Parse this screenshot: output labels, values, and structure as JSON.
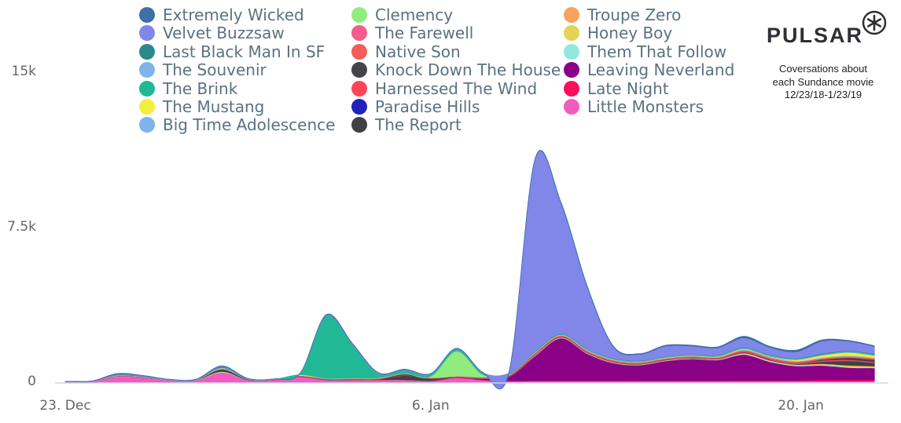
{
  "chart_data": {
    "type": "area",
    "stacked": true,
    "title": "",
    "xlabel": "",
    "ylabel": "",
    "ylim": [
      0,
      15000
    ],
    "y_ticks": [
      {
        "value": 0,
        "label": "0"
      },
      {
        "value": 7500,
        "label": "7.5k"
      },
      {
        "value": 15000,
        "label": "15k"
      }
    ],
    "x_ticks": [
      {
        "index": 0,
        "label": "23. Dec"
      },
      {
        "index": 14,
        "label": "6. Jan"
      },
      {
        "index": 28,
        "label": "20. Jan"
      }
    ],
    "x": [
      "Dec 23",
      "Dec 24",
      "Dec 25",
      "Dec 26",
      "Dec 27",
      "Dec 28",
      "Dec 29",
      "Dec 30",
      "Dec 31",
      "Jan 1",
      "Jan 2",
      "Jan 3",
      "Jan 4",
      "Jan 5",
      "Jan 6",
      "Jan 7",
      "Jan 8",
      "Jan 9",
      "Jan 10",
      "Jan 11",
      "Jan 12",
      "Jan 13",
      "Jan 14",
      "Jan 15",
      "Jan 16",
      "Jan 17",
      "Jan 18",
      "Jan 19",
      "Jan 20",
      "Jan 21",
      "Jan 22",
      "Jan 23"
    ],
    "legend_position": "top",
    "series": [
      {
        "name": "Extremely Wicked",
        "color": "#3d6fa8",
        "values": [
          0,
          0,
          20,
          10,
          0,
          0,
          20,
          0,
          0,
          0,
          20,
          20,
          10,
          10,
          0,
          0,
          10,
          10,
          20,
          30,
          30,
          30,
          30,
          40,
          40,
          40,
          80,
          50,
          80,
          60,
          40,
          30
        ]
      },
      {
        "name": "Velvet Buzzsaw",
        "color": "#8087e8",
        "values": [
          0,
          0,
          30,
          20,
          10,
          10,
          30,
          10,
          10,
          10,
          40,
          40,
          20,
          20,
          10,
          10,
          20,
          50,
          9300,
          6300,
          3000,
          550,
          300,
          500,
          400,
          350,
          450,
          350,
          300,
          600,
          450,
          350
        ]
      },
      {
        "name": "Last Black Man In SF",
        "color": "#2a8a8a",
        "values": [
          0,
          0,
          20,
          10,
          10,
          10,
          30,
          10,
          0,
          10,
          10,
          10,
          10,
          10,
          10,
          10,
          20,
          20,
          20,
          20,
          20,
          20,
          20,
          20,
          20,
          30,
          30,
          30,
          30,
          40,
          40,
          40
        ]
      },
      {
        "name": "The Souvenir",
        "color": "#7cb5ec",
        "values": [
          0,
          0,
          20,
          10,
          10,
          10,
          20,
          10,
          10,
          10,
          10,
          10,
          10,
          10,
          10,
          10,
          10,
          10,
          10,
          10,
          20,
          20,
          20,
          20,
          20,
          20,
          30,
          30,
          30,
          30,
          30,
          30
        ]
      },
      {
        "name": "The Brink",
        "color": "#21b896",
        "values": [
          0,
          0,
          0,
          0,
          0,
          0,
          10,
          0,
          0,
          50,
          3000,
          1600,
          200,
          150,
          100,
          100,
          50,
          20,
          20,
          20,
          20,
          20,
          20,
          20,
          20,
          20,
          20,
          20,
          20,
          20,
          20,
          20
        ]
      },
      {
        "name": "The Mustang",
        "color": "#f2ee3e",
        "values": [
          0,
          0,
          0,
          0,
          0,
          0,
          20,
          0,
          0,
          40,
          10,
          10,
          10,
          10,
          10,
          10,
          10,
          10,
          10,
          10,
          10,
          10,
          10,
          10,
          10,
          20,
          30,
          20,
          60,
          100,
          150,
          100
        ]
      },
      {
        "name": "Big Time Adolescence",
        "color": "#7eb3ec",
        "values": [
          0,
          0,
          10,
          10,
          0,
          0,
          10,
          0,
          0,
          0,
          10,
          10,
          10,
          10,
          10,
          10,
          10,
          10,
          10,
          10,
          10,
          10,
          10,
          10,
          10,
          10,
          20,
          20,
          20,
          20,
          20,
          20
        ]
      },
      {
        "name": "Clemency",
        "color": "#90ec7d",
        "values": [
          0,
          0,
          0,
          0,
          0,
          0,
          0,
          0,
          0,
          0,
          0,
          0,
          0,
          0,
          50,
          1200,
          100,
          10,
          10,
          10,
          10,
          10,
          10,
          10,
          10,
          10,
          10,
          10,
          10,
          10,
          10,
          10
        ]
      },
      {
        "name": "The Farewell",
        "color": "#f25d8a",
        "values": [
          0,
          0,
          10,
          10,
          0,
          0,
          10,
          0,
          0,
          10,
          10,
          10,
          10,
          10,
          10,
          10,
          10,
          10,
          20,
          20,
          20,
          20,
          20,
          20,
          20,
          20,
          30,
          30,
          30,
          30,
          30,
          30
        ]
      },
      {
        "name": "Native Son",
        "color": "#f45b5b",
        "values": [
          0,
          0,
          10,
          10,
          0,
          0,
          10,
          0,
          0,
          10,
          10,
          10,
          10,
          10,
          10,
          10,
          10,
          10,
          20,
          20,
          20,
          20,
          20,
          20,
          20,
          20,
          30,
          30,
          30,
          40,
          40,
          40
        ]
      },
      {
        "name": "Knock Down The House",
        "color": "#434348",
        "values": [
          0,
          0,
          0,
          0,
          0,
          0,
          0,
          0,
          0,
          0,
          0,
          0,
          0,
          50,
          10,
          0,
          0,
          0,
          0,
          0,
          0,
          0,
          0,
          0,
          0,
          0,
          10,
          10,
          10,
          50,
          100,
          100
        ]
      },
      {
        "name": "Harnessed The Wind",
        "color": "#ff4455",
        "values": [
          0,
          0,
          10,
          10,
          0,
          0,
          10,
          10,
          10,
          10,
          10,
          20,
          20,
          20,
          20,
          20,
          30,
          30,
          40,
          40,
          40,
          40,
          30,
          30,
          30,
          30,
          40,
          40,
          40,
          60,
          60,
          50
        ]
      },
      {
        "name": "Paradise Hills",
        "color": "#2222bb",
        "values": [
          0,
          0,
          0,
          0,
          0,
          0,
          0,
          0,
          0,
          0,
          0,
          0,
          0,
          0,
          0,
          0,
          0,
          0,
          0,
          0,
          0,
          0,
          0,
          0,
          0,
          0,
          10,
          10,
          10,
          10,
          10,
          10
        ]
      },
      {
        "name": "The Report",
        "color": "#404045",
        "values": [
          0,
          0,
          0,
          0,
          0,
          0,
          100,
          20,
          10,
          20,
          20,
          20,
          30,
          200,
          100,
          20,
          20,
          20,
          20,
          20,
          20,
          20,
          20,
          20,
          20,
          20,
          20,
          20,
          20,
          80,
          200,
          150
        ]
      },
      {
        "name": "Troupe Zero",
        "color": "#f7a35c",
        "values": [
          0,
          0,
          0,
          0,
          0,
          0,
          10,
          0,
          0,
          0,
          0,
          0,
          0,
          0,
          0,
          0,
          0,
          0,
          10,
          10,
          10,
          10,
          10,
          10,
          10,
          10,
          20,
          20,
          20,
          30,
          40,
          30
        ]
      },
      {
        "name": "Honey Boy",
        "color": "#e4d354",
        "values": [
          0,
          0,
          0,
          0,
          0,
          0,
          10,
          0,
          0,
          0,
          0,
          0,
          0,
          0,
          0,
          0,
          0,
          0,
          10,
          10,
          10,
          10,
          10,
          10,
          10,
          10,
          20,
          20,
          20,
          30,
          40,
          30
        ]
      },
      {
        "name": "Them That Follow",
        "color": "#91e8e1",
        "values": [
          0,
          0,
          30,
          20,
          10,
          10,
          40,
          10,
          10,
          10,
          10,
          10,
          10,
          10,
          10,
          10,
          10,
          10,
          20,
          20,
          20,
          20,
          20,
          20,
          20,
          20,
          30,
          30,
          30,
          30,
          30,
          30
        ]
      },
      {
        "name": "Leaving Neverland",
        "color": "#8a0087",
        "values": [
          0,
          0,
          0,
          0,
          0,
          0,
          0,
          0,
          0,
          0,
          0,
          0,
          0,
          0,
          0,
          0,
          50,
          200,
          1200,
          2050,
          1300,
          850,
          750,
          950,
          1050,
          1000,
          1250,
          900,
          700,
          700,
          600,
          580
        ]
      },
      {
        "name": "Late Night",
        "color": "#ff0d5a",
        "values": [
          0,
          0,
          10,
          10,
          0,
          0,
          10,
          10,
          10,
          10,
          10,
          10,
          10,
          10,
          10,
          20,
          20,
          20,
          30,
          30,
          30,
          30,
          30,
          30,
          30,
          30,
          40,
          40,
          40,
          60,
          60,
          60
        ]
      },
      {
        "name": "Little Monsters",
        "color": "#f45bc0",
        "values": [
          30,
          50,
          250,
          200,
          100,
          100,
          450,
          100,
          100,
          250,
          100,
          100,
          100,
          100,
          50,
          200,
          100,
          50,
          50,
          50,
          50,
          50,
          50,
          50,
          50,
          50,
          50,
          50,
          50,
          50,
          50,
          50
        ]
      }
    ]
  },
  "branding": {
    "logo_text": "PULSAR",
    "caption_lines": [
      "Coversations about",
      "each Sundance movie",
      "12/23/18-1/23/19"
    ]
  }
}
